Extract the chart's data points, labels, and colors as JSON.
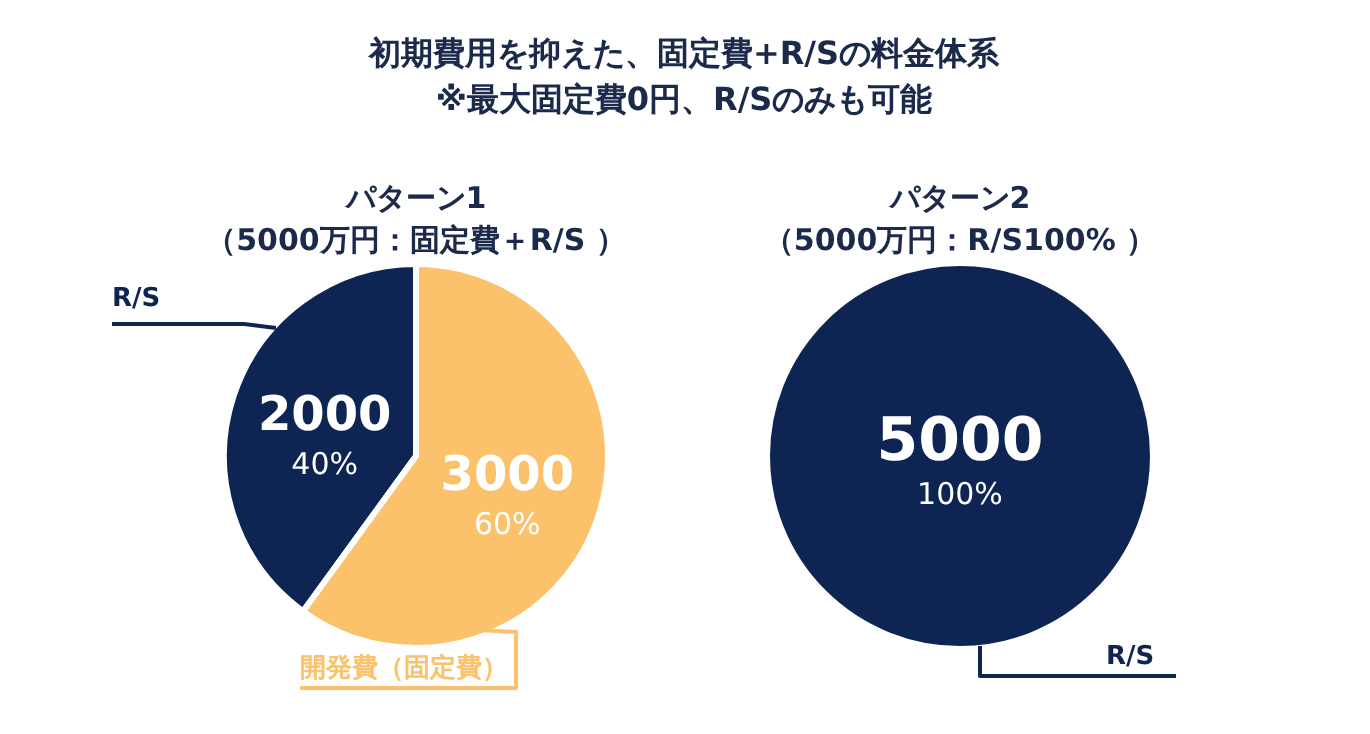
{
  "chart_data": [
    {
      "type": "pie",
      "title": "初期費用を抑えた、固定費+R/Sの料金体系",
      "subtitle": "※最大固定費0円、R/Sのみも可能",
      "annotations": [
        "パターン1",
        "（5000万円：固定費＋R/S ）",
        {
          "text": "40%",
          "x": "R/S"
        },
        {
          "text": "60%",
          "x": "開発費（固定費）"
        }
      ],
      "categories": [
        "R/S",
        "開発費（固定費）"
      ],
      "values": [
        2000,
        3000
      ],
      "colors": [
        "#0e2452",
        "#fbc16b"
      ],
      "data_labels": true
    },
    {
      "type": "pie",
      "annotations": [
        "パターン2",
        "（5000万円：R/S100% ）",
        {
          "text": "100%",
          "x": "R/S"
        }
      ],
      "categories": [
        "R/S"
      ],
      "values": [
        5000
      ],
      "colors": [
        "#0e2452"
      ],
      "data_labels": true
    }
  ]
}
